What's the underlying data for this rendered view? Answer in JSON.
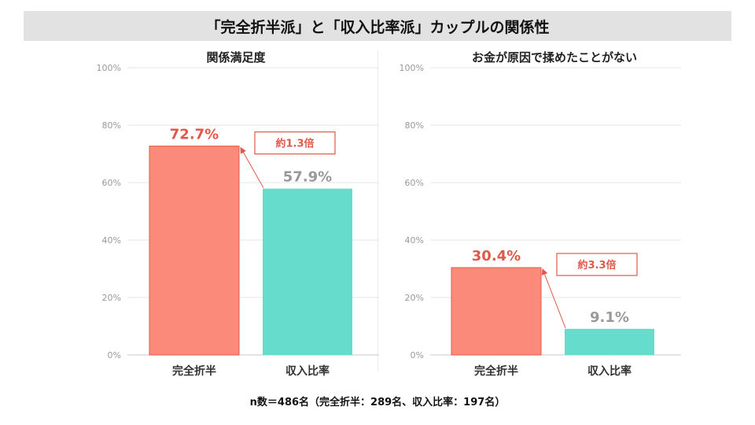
{
  "title": "「完全折半派」と「収入比率派」カップルの関係性",
  "footnote": "n数＝486名（完全折半：289名、収入比率：197名）",
  "colors": {
    "bar_primary": "#fb8a7b",
    "bar_primary_border": "#e0594a",
    "bar_secondary": "#66ddcc",
    "highlight_text": "#e0594a",
    "muted_text": "#999999",
    "grid": "#e6e6e6"
  },
  "chart_data": [
    {
      "type": "bar",
      "title": "関係満足度",
      "categories": [
        "完全折半",
        "収入比率"
      ],
      "values": [
        72.7,
        57.9
      ],
      "value_labels": [
        "72.7%",
        "57.9%"
      ],
      "ylim": [
        0,
        100
      ],
      "yticks": [
        "0%",
        "20%",
        "40%",
        "60%",
        "80%",
        "100%"
      ],
      "annotation": "約1.3倍",
      "grid": true
    },
    {
      "type": "bar",
      "title": "お金が原因で揉めたことがない",
      "categories": [
        "完全折半",
        "収入比率"
      ],
      "values": [
        30.4,
        9.1
      ],
      "value_labels": [
        "30.4%",
        "9.1%"
      ],
      "ylim": [
        0,
        100
      ],
      "yticks": [
        "0%",
        "20%",
        "40%",
        "60%",
        "80%",
        "100%"
      ],
      "annotation": "約3.3倍",
      "grid": true
    }
  ]
}
